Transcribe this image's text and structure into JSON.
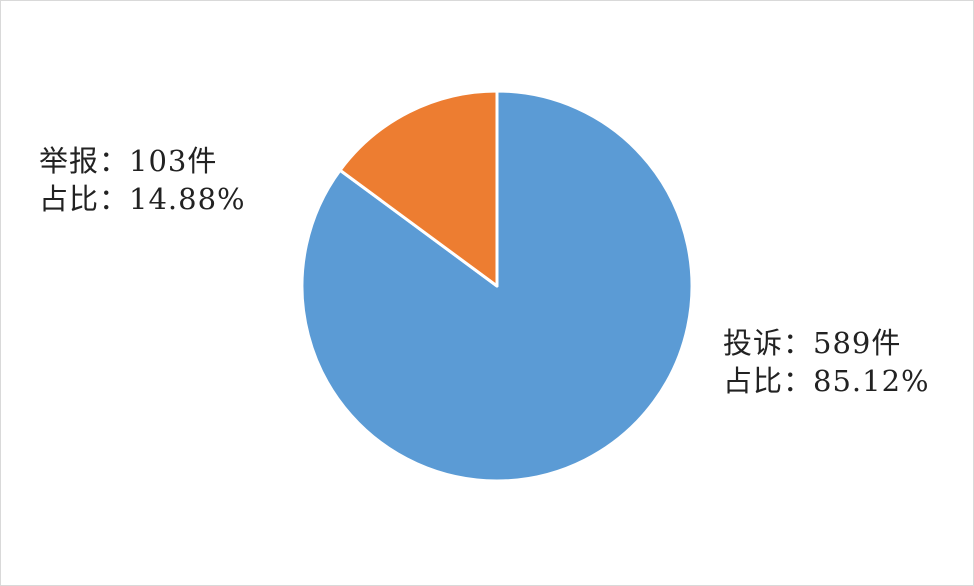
{
  "chart_data": {
    "type": "pie",
    "start_angle": "12 o'clock, clockwise",
    "slices": [
      {
        "name": "投诉",
        "value": 589,
        "percent": 85.12,
        "color": "#5b9bd5",
        "label_line1": "投诉：589件",
        "label_line2": "占比：85.12%"
      },
      {
        "name": "举报",
        "value": 103,
        "percent": 14.88,
        "color": "#ed7d31",
        "label_line1": "举报：103件",
        "label_line2": "占比：14.88%"
      }
    ],
    "legend": "none"
  }
}
